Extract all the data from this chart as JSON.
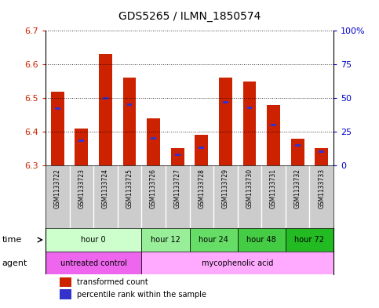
{
  "title": "GDS5265 / ILMN_1850574",
  "samples": [
    "GSM1133722",
    "GSM1133723",
    "GSM1133724",
    "GSM1133725",
    "GSM1133726",
    "GSM1133727",
    "GSM1133728",
    "GSM1133729",
    "GSM1133730",
    "GSM1133731",
    "GSM1133732",
    "GSM1133733"
  ],
  "transformed_count": [
    6.52,
    6.41,
    6.63,
    6.56,
    6.44,
    6.35,
    6.39,
    6.56,
    6.55,
    6.48,
    6.38,
    6.35
  ],
  "percentile_rank": [
    42,
    18,
    50,
    45,
    20,
    8,
    13,
    47,
    43,
    30,
    15,
    10
  ],
  "ylim_left": [
    6.3,
    6.7
  ],
  "ylim_right": [
    0,
    100
  ],
  "yticks_left": [
    6.3,
    6.4,
    6.5,
    6.6,
    6.7
  ],
  "yticks_right": [
    0,
    25,
    50,
    75,
    100
  ],
  "ytick_labels_right": [
    "0",
    "25",
    "50",
    "75",
    "100%"
  ],
  "bar_color_red": "#cc2200",
  "bar_color_blue": "#3333cc",
  "base_value": 6.3,
  "time_groups": [
    {
      "label": "hour 0",
      "start": 0,
      "end": 4,
      "color": "#ccffcc"
    },
    {
      "label": "hour 12",
      "start": 4,
      "end": 6,
      "color": "#99ee99"
    },
    {
      "label": "hour 24",
      "start": 6,
      "end": 8,
      "color": "#66dd66"
    },
    {
      "label": "hour 48",
      "start": 8,
      "end": 10,
      "color": "#44cc44"
    },
    {
      "label": "hour 72",
      "start": 10,
      "end": 12,
      "color": "#22bb22"
    }
  ],
  "agent_groups": [
    {
      "label": "untreated control",
      "start": 0,
      "end": 4,
      "color": "#ee66ee"
    },
    {
      "label": "mycophenolic acid",
      "start": 4,
      "end": 12,
      "color": "#ffaaff"
    }
  ],
  "bg_color": "#e8e8e8",
  "plot_bg": "#ffffff",
  "left_axis_color": "#cc2200",
  "right_axis_color": "#0000cc"
}
